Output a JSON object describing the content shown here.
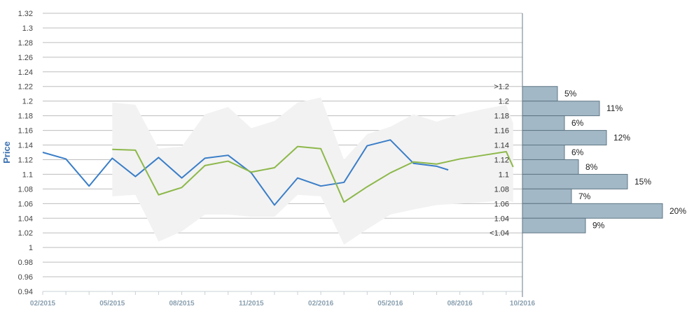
{
  "chart_data": {
    "type": "line",
    "ylabel": "Price",
    "ylim": [
      0.94,
      1.32
    ],
    "y_ticks": [
      1.32,
      1.3,
      1.28,
      1.26,
      1.24,
      1.22,
      1.2,
      1.18,
      1.16,
      1.14,
      1.12,
      1.1,
      1.08,
      1.06,
      1.04,
      1.02,
      1,
      0.98,
      0.96,
      0.94
    ],
    "y_tick_labels": [
      "1.32",
      "1.3",
      "1.28",
      "1.26",
      "1.24",
      "1.22",
      "1.2",
      "1.18",
      "1.16",
      "1.14",
      "1.12",
      "1.1",
      "1.08",
      "1.06",
      "1.04",
      "1.02",
      "1",
      "0.98",
      "0.96",
      "0.94"
    ],
    "x_ticks": [
      0,
      3,
      6,
      9,
      12,
      15,
      18,
      20.7
    ],
    "x_tick_labels": [
      "02/2015",
      "05/2015",
      "08/2015",
      "11/2015",
      "02/2016",
      "05/2016",
      "08/2016",
      "10/2016"
    ],
    "xlim": [
      0,
      20.7
    ],
    "grid": true,
    "series": [
      {
        "color": "#3a7ec8",
        "x": [
          0,
          1,
          2,
          3,
          4,
          5,
          6,
          7,
          8,
          9,
          10,
          11,
          12,
          13,
          14,
          15,
          16,
          17,
          17.5
        ],
        "y": [
          1.13,
          1.121,
          1.084,
          1.122,
          1.097,
          1.123,
          1.095,
          1.122,
          1.126,
          1.102,
          1.058,
          1.095,
          1.084,
          1.089,
          1.139,
          1.147,
          1.115,
          1.111,
          1.106
        ]
      },
      {
        "color": "#8db84a",
        "x": [
          3,
          4,
          5,
          6,
          7,
          8,
          9,
          10,
          11,
          12,
          13,
          14,
          15,
          16,
          17,
          18,
          19,
          20,
          20.3
        ],
        "y": [
          1.134,
          1.133,
          1.072,
          1.082,
          1.112,
          1.118,
          1.103,
          1.109,
          1.138,
          1.135,
          1.062,
          1.083,
          1.102,
          1.117,
          1.114,
          1.121,
          1.126,
          1.131,
          1.11
        ]
      }
    ],
    "band": {
      "color": "#f2f2f2",
      "x": [
        3,
        4,
        5,
        6,
        7,
        8,
        9,
        10,
        11,
        12,
        13,
        14,
        15,
        16,
        17,
        18,
        19,
        20,
        20.3
      ],
      "upper": [
        1.198,
        1.195,
        1.135,
        1.138,
        1.182,
        1.192,
        1.163,
        1.173,
        1.198,
        1.205,
        1.12,
        1.155,
        1.165,
        1.182,
        1.172,
        1.182,
        1.189,
        1.195,
        1.17
      ],
      "lower": [
        1.07,
        1.072,
        1.008,
        1.022,
        1.045,
        1.045,
        1.042,
        1.042,
        1.072,
        1.07,
        1.004,
        1.025,
        1.045,
        1.052,
        1.058,
        1.06,
        1.062,
        1.065,
        1.062
      ]
    },
    "histogram": {
      "type": "bar",
      "orientation": "horizontal",
      "color": "#a2b8c6",
      "bins": [
        {
          "label": ">1.2",
          "center": 1.21,
          "percent": 5,
          "percent_label": "5%"
        },
        {
          "label": "1.2",
          "center": 1.19,
          "percent": 11,
          "percent_label": "11%"
        },
        {
          "label": "1.18",
          "center": 1.17,
          "percent": 6,
          "percent_label": "6%"
        },
        {
          "label": "1.16",
          "center": 1.15,
          "percent": 12,
          "percent_label": "12%"
        },
        {
          "label": "1.14",
          "center": 1.13,
          "percent": 6,
          "percent_label": "6%"
        },
        {
          "label": "1.12",
          "center": 1.11,
          "percent": 8,
          "percent_label": "8%"
        },
        {
          "label": "1.1",
          "center": 1.09,
          "percent": 15,
          "percent_label": "15%"
        },
        {
          "label": "1.08",
          "center": 1.07,
          "percent": 7,
          "percent_label": "7%"
        },
        {
          "label": "1.06",
          "center": 1.05,
          "percent": 20,
          "percent_label": "20%"
        },
        {
          "label": "1.04",
          "center": 1.03,
          "percent": 9,
          "percent_label": "9%"
        }
      ],
      "extra_labels": [
        {
          "label": "<1.04",
          "value": 1.02
        }
      ]
    }
  }
}
